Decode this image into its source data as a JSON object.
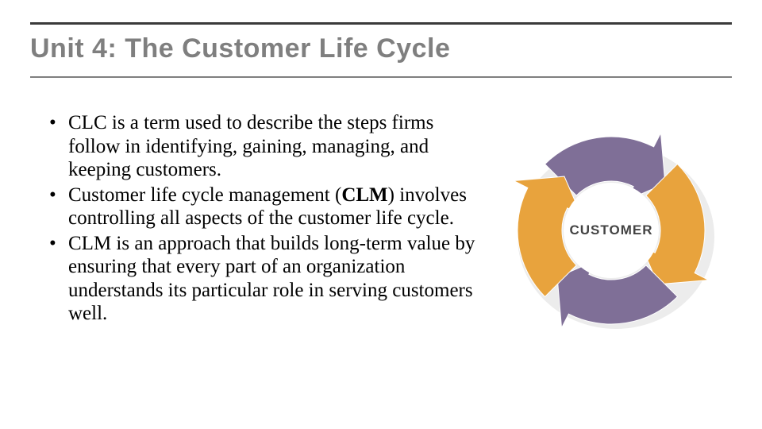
{
  "title": "Unit 4: The Customer Life Cycle",
  "title_fontsize": 34,
  "title_color": "#7f7f7f",
  "rule_top_color": "#3a3a3a",
  "rule_bottom_color": "#7f7f7f",
  "bullets": {
    "b1_pre": "CLC is a term used to describe the steps firms follow in identifying, gaining, managing, and keeping customers.",
    "b2_pre": "Customer life cycle management (",
    "b2_bold": "CLM",
    "b2_post": ") involves controlling all aspects of the customer life cycle.",
    "b3_pre": "CLM is an approach that builds long-term value by ensuring that every part of an organization understands its particular role in serving customers well."
  },
  "body_fontsize": 25,
  "body_color": "#000000",
  "diagram": {
    "type": "circular-arrows-infographic",
    "center_label": "CUSTOMER",
    "center_label_fontsize": 17,
    "center_label_color": "#434343",
    "ring_inner_radius": 62,
    "ring_outer_radius": 118,
    "background_color": "#ffffff",
    "inner_hole_color": "#ffffff",
    "arrows": [
      {
        "color": "#7f6f97",
        "start_deg": -45,
        "sweep_deg": 90
      },
      {
        "color": "#e8a33d",
        "start_deg": 45,
        "sweep_deg": 90
      },
      {
        "color": "#7f6f97",
        "start_deg": 135,
        "sweep_deg": 90
      },
      {
        "color": "#e8a33d",
        "start_deg": 225,
        "sweep_deg": 90
      }
    ],
    "arrowhead_overhang_deg": 18,
    "shadow_color": "#d9d9d9"
  }
}
